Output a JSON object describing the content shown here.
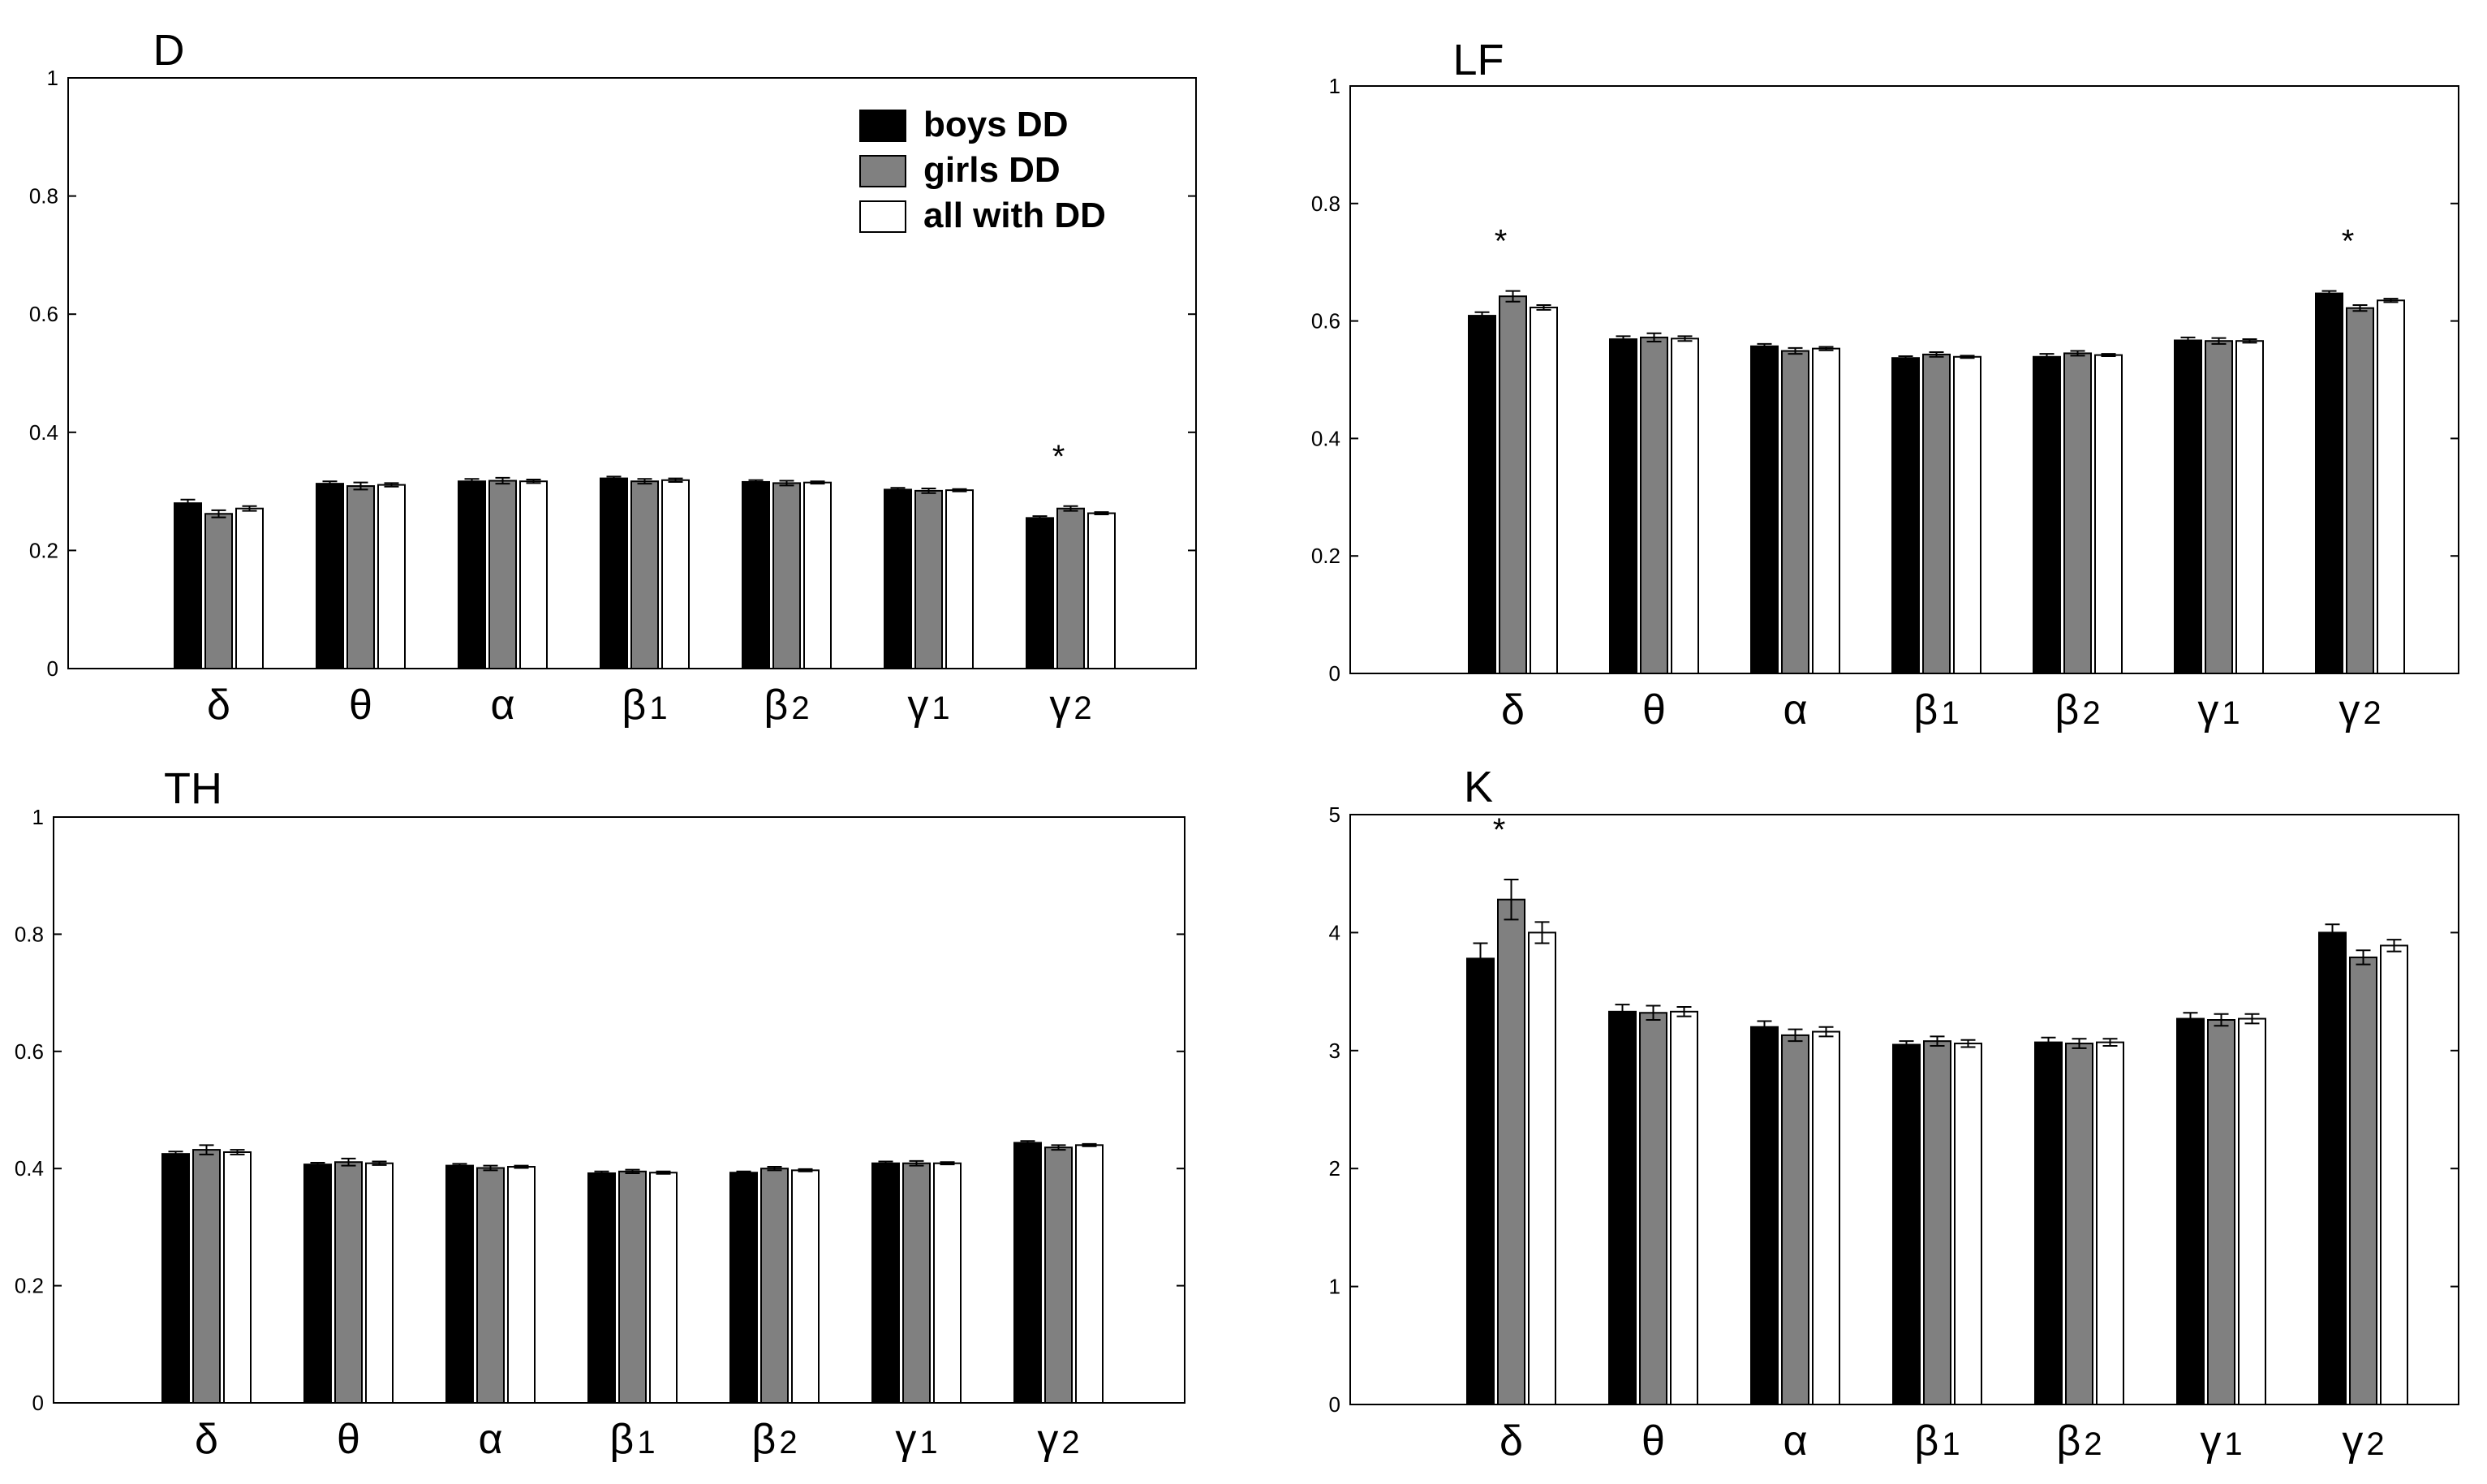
{
  "colors": {
    "boys": "#000000",
    "girls": "#808080",
    "all": "#ffffff",
    "axis": "#000000"
  },
  "legend": {
    "labels": [
      "boys DD",
      "girls DD",
      "all with DD"
    ],
    "placement": "top-right of panel D"
  },
  "chart_data": [
    {
      "type": "bar",
      "title": "D",
      "categories": [
        "δ",
        "θ",
        "α",
        "β1",
        "β2",
        "γ1",
        "γ2"
      ],
      "category_parts": [
        [
          "δ",
          ""
        ],
        [
          "θ",
          ""
        ],
        [
          "α",
          ""
        ],
        [
          "β",
          "1"
        ],
        [
          "β",
          "2"
        ],
        [
          "γ",
          "1"
        ],
        [
          "γ",
          "2"
        ]
      ],
      "ylim": [
        0,
        1
      ],
      "yticks": [
        "0",
        "0.2",
        "0.4",
        "0.6",
        "0.8",
        "1"
      ],
      "series": [
        {
          "name": "boys DD",
          "values": [
            0.28,
            0.313,
            0.317,
            0.322,
            0.316,
            0.303,
            0.255
          ],
          "errors": [
            0.006,
            0.004,
            0.004,
            0.003,
            0.003,
            0.003,
            0.003
          ]
        },
        {
          "name": "girls DD",
          "values": [
            0.262,
            0.309,
            0.318,
            0.317,
            0.314,
            0.301,
            0.271
          ],
          "errors": [
            0.006,
            0.006,
            0.005,
            0.004,
            0.004,
            0.004,
            0.004
          ]
        },
        {
          "name": "all with DD",
          "values": [
            0.271,
            0.311,
            0.317,
            0.319,
            0.315,
            0.302,
            0.263
          ],
          "errors": [
            0.004,
            0.003,
            0.003,
            0.003,
            0.002,
            0.002,
            0.002
          ]
        }
      ],
      "annotations": [
        {
          "category": "γ2",
          "text": "*"
        }
      ]
    },
    {
      "type": "bar",
      "title": "LF",
      "categories": [
        "δ",
        "θ",
        "α",
        "β1",
        "β2",
        "γ1",
        "γ2"
      ],
      "category_parts": [
        [
          "δ",
          ""
        ],
        [
          "θ",
          ""
        ],
        [
          "α",
          ""
        ],
        [
          "β",
          "1"
        ],
        [
          "β",
          "2"
        ],
        [
          "γ",
          "1"
        ],
        [
          "γ",
          "2"
        ]
      ],
      "ylim": [
        0,
        1
      ],
      "yticks": [
        "0",
        "0.2",
        "0.4",
        "0.6",
        "0.8",
        "1"
      ],
      "series": [
        {
          "name": "boys DD",
          "values": [
            0.609,
            0.569,
            0.557,
            0.537,
            0.539,
            0.567,
            0.647
          ],
          "errors": [
            0.006,
            0.005,
            0.004,
            0.003,
            0.005,
            0.005,
            0.004
          ]
        },
        {
          "name": "girls DD",
          "values": [
            0.642,
            0.572,
            0.549,
            0.543,
            0.545,
            0.566,
            0.622
          ],
          "errors": [
            0.009,
            0.007,
            0.005,
            0.004,
            0.004,
            0.005,
            0.005
          ]
        },
        {
          "name": "all with DD",
          "values": [
            0.623,
            0.57,
            0.553,
            0.539,
            0.542,
            0.566,
            0.635
          ],
          "errors": [
            0.004,
            0.004,
            0.003,
            0.002,
            0.002,
            0.003,
            0.003
          ]
        }
      ],
      "annotations": [
        {
          "category": "δ",
          "text": "*"
        },
        {
          "category": "γ2",
          "text": "*"
        }
      ]
    },
    {
      "type": "bar",
      "title": "TH",
      "categories": [
        "δ",
        "θ",
        "α",
        "β1",
        "β2",
        "γ1",
        "γ2"
      ],
      "category_parts": [
        [
          "δ",
          ""
        ],
        [
          "θ",
          ""
        ],
        [
          "α",
          ""
        ],
        [
          "β",
          "1"
        ],
        [
          "β",
          "2"
        ],
        [
          "γ",
          "1"
        ],
        [
          "γ",
          "2"
        ]
      ],
      "ylim": [
        0,
        1
      ],
      "yticks": [
        "0",
        "0.2",
        "0.4",
        "0.6",
        "0.8",
        "1"
      ],
      "series": [
        {
          "name": "boys DD",
          "values": [
            0.425,
            0.407,
            0.405,
            0.392,
            0.393,
            0.409,
            0.444
          ],
          "errors": [
            0.004,
            0.003,
            0.003,
            0.003,
            0.002,
            0.003,
            0.003
          ]
        },
        {
          "name": "girls DD",
          "values": [
            0.432,
            0.411,
            0.401,
            0.395,
            0.4,
            0.409,
            0.436
          ],
          "errors": [
            0.008,
            0.006,
            0.004,
            0.003,
            0.003,
            0.004,
            0.004
          ]
        },
        {
          "name": "all with DD",
          "values": [
            0.428,
            0.409,
            0.403,
            0.393,
            0.397,
            0.409,
            0.44
          ],
          "errors": [
            0.004,
            0.003,
            0.002,
            0.002,
            0.002,
            0.002,
            0.002
          ]
        }
      ],
      "annotations": []
    },
    {
      "type": "bar",
      "title": "K",
      "categories": [
        "δ",
        "θ",
        "α",
        "β1",
        "β2",
        "γ1",
        "γ2"
      ],
      "category_parts": [
        [
          "δ",
          ""
        ],
        [
          "θ",
          ""
        ],
        [
          "α",
          ""
        ],
        [
          "β",
          "1"
        ],
        [
          "β",
          "2"
        ],
        [
          "γ",
          "1"
        ],
        [
          "γ",
          "2"
        ]
      ],
      "ylim": [
        0,
        5
      ],
      "yticks": [
        "0",
        "1",
        "2",
        "3",
        "4",
        "5"
      ],
      "series": [
        {
          "name": "boys DD",
          "values": [
            3.78,
            3.33,
            3.2,
            3.05,
            3.07,
            3.27,
            4.0
          ],
          "errors": [
            0.13,
            0.06,
            0.05,
            0.03,
            0.04,
            0.05,
            0.07
          ]
        },
        {
          "name": "girls DD",
          "values": [
            4.28,
            3.32,
            3.13,
            3.08,
            3.06,
            3.26,
            3.79
          ],
          "errors": [
            0.17,
            0.06,
            0.05,
            0.04,
            0.04,
            0.05,
            0.06
          ]
        },
        {
          "name": "all with DD",
          "values": [
            4.0,
            3.33,
            3.16,
            3.06,
            3.07,
            3.27,
            3.89
          ],
          "errors": [
            0.09,
            0.04,
            0.04,
            0.03,
            0.03,
            0.04,
            0.05
          ]
        }
      ],
      "annotations": [
        {
          "category": "δ",
          "text": "*"
        }
      ]
    }
  ]
}
